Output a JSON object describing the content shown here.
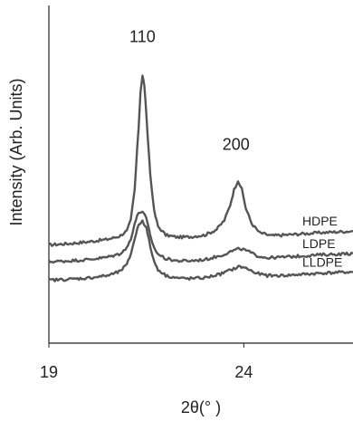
{
  "chart_data": {
    "type": "line",
    "title": "",
    "xlabel": "2θ(° )",
    "ylabel": "Intensity (Arb. Units)",
    "xlim": [
      19,
      26.8
    ],
    "ylim": [
      0,
      110
    ],
    "xticks": [
      "19",
      "24"
    ],
    "xtick_values": [
      19,
      24
    ],
    "peak_labels": [
      {
        "text": "110",
        "x": 21.4,
        "y": 98
      },
      {
        "text": "200",
        "x": 23.8,
        "y": 63
      }
    ],
    "series": [
      {
        "name": "HDPE",
        "color": "#555555",
        "x": [
          19.0,
          19.5,
          20.0,
          20.5,
          20.8,
          21.0,
          21.1,
          21.2,
          21.3,
          21.35,
          21.4,
          21.45,
          21.5,
          21.6,
          21.7,
          21.8,
          22.0,
          22.3,
          22.6,
          23.0,
          23.3,
          23.5,
          23.65,
          23.75,
          23.85,
          23.95,
          24.05,
          24.2,
          24.4,
          24.7,
          25.0,
          25.5,
          26.0,
          26.8
        ],
        "y": [
          32.0,
          32.4,
          33.0,
          33.8,
          34.8,
          36.5,
          40.0,
          50.0,
          70.0,
          82.0,
          87.0,
          84.0,
          74.0,
          55.0,
          43.0,
          38.0,
          35.2,
          34.5,
          34.6,
          35.2,
          37.0,
          40.0,
          45.0,
          50.0,
          53.0,
          50.0,
          44.0,
          39.0,
          36.0,
          35.0,
          35.2,
          35.6,
          36.0,
          36.5
        ]
      },
      {
        "name": "LDPE",
        "color": "#555555",
        "x": [
          19.0,
          19.5,
          20.0,
          20.5,
          20.8,
          21.0,
          21.1,
          21.2,
          21.3,
          21.4,
          21.5,
          21.6,
          21.7,
          21.8,
          22.0,
          22.3,
          22.6,
          23.0,
          23.4,
          23.7,
          23.9,
          24.1,
          24.3,
          24.6,
          25.0,
          25.5,
          26.0,
          26.8
        ],
        "y": [
          26.5,
          26.8,
          27.2,
          28.0,
          29.0,
          31.0,
          34.0,
          39.0,
          42.5,
          43.0,
          40.5,
          35.0,
          31.0,
          29.0,
          27.5,
          26.8,
          26.8,
          27.2,
          28.5,
          30.0,
          30.8,
          30.0,
          28.6,
          27.8,
          28.0,
          28.4,
          28.8,
          29.2
        ]
      },
      {
        "name": "LLDPE",
        "color": "#555555",
        "x": [
          19.0,
          19.5,
          20.0,
          20.5,
          20.8,
          21.0,
          21.1,
          21.2,
          21.3,
          21.4,
          21.5,
          21.6,
          21.7,
          21.8,
          22.0,
          22.3,
          22.6,
          23.0,
          23.4,
          23.7,
          23.9,
          24.1,
          24.3,
          24.6,
          25.0,
          25.5,
          26.0,
          26.8
        ],
        "y": [
          20.5,
          20.8,
          21.2,
          22.0,
          23.2,
          25.5,
          29.0,
          34.0,
          38.5,
          40.0,
          37.5,
          31.5,
          26.5,
          24.0,
          22.0,
          21.2,
          21.0,
          21.3,
          22.5,
          24.0,
          25.0,
          24.2,
          22.8,
          22.0,
          22.0,
          22.4,
          22.8,
          23.2
        ]
      }
    ]
  }
}
